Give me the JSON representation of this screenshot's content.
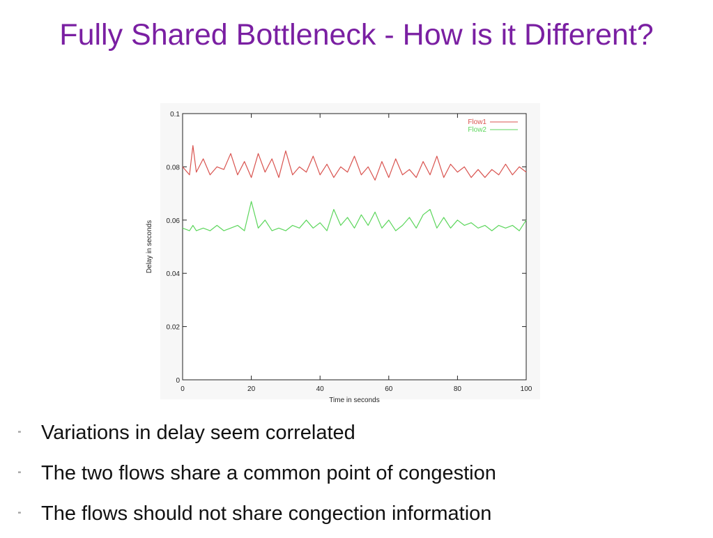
{
  "slide": {
    "title": "Fully Shared Bottleneck - How is it Different?"
  },
  "bullets": [
    {
      "mark": "\"",
      "text": "Variations in delay seem correlated"
    },
    {
      "mark": "\"",
      "text": "The two flows share a common point of congestion"
    },
    {
      "mark": "\"",
      "text": "The flows should not share congection information"
    }
  ],
  "chart_data": {
    "type": "line",
    "title": "",
    "xlabel": "Time in seconds",
    "ylabel": "Delay in seconds",
    "xlim": [
      0,
      100
    ],
    "ylim": [
      0,
      0.1
    ],
    "xticks": [
      0,
      20,
      40,
      60,
      80,
      100
    ],
    "yticks": [
      0,
      0.02,
      0.04,
      0.06,
      0.08,
      0.1
    ],
    "ytick_labels": [
      "0",
      "0.02",
      "0.04",
      "0.06",
      "0.08",
      "0.1"
    ],
    "grid": false,
    "legend_position": "top-right",
    "x": [
      0,
      2,
      3,
      4,
      6,
      8,
      10,
      12,
      14,
      16,
      18,
      20,
      22,
      24,
      26,
      28,
      30,
      32,
      34,
      36,
      38,
      40,
      42,
      44,
      46,
      48,
      50,
      52,
      54,
      56,
      58,
      60,
      62,
      64,
      66,
      68,
      70,
      72,
      74,
      76,
      78,
      80,
      82,
      84,
      86,
      88,
      90,
      92,
      94,
      96,
      98,
      100
    ],
    "series": [
      {
        "name": "Flow1",
        "color": "#d9534f",
        "values": [
          0.08,
          0.077,
          0.088,
          0.078,
          0.083,
          0.077,
          0.08,
          0.079,
          0.085,
          0.077,
          0.082,
          0.076,
          0.085,
          0.078,
          0.083,
          0.076,
          0.086,
          0.077,
          0.08,
          0.078,
          0.084,
          0.077,
          0.081,
          0.076,
          0.08,
          0.078,
          0.084,
          0.077,
          0.08,
          0.075,
          0.082,
          0.076,
          0.083,
          0.077,
          0.079,
          0.076,
          0.082,
          0.077,
          0.084,
          0.076,
          0.081,
          0.078,
          0.08,
          0.076,
          0.079,
          0.076,
          0.079,
          0.077,
          0.081,
          0.077,
          0.08,
          0.078
        ]
      },
      {
        "name": "Flow2",
        "color": "#5cd65c",
        "values": [
          0.057,
          0.056,
          0.058,
          0.056,
          0.057,
          0.056,
          0.058,
          0.056,
          0.057,
          0.058,
          0.056,
          0.067,
          0.057,
          0.06,
          0.056,
          0.057,
          0.056,
          0.058,
          0.057,
          0.06,
          0.057,
          0.059,
          0.056,
          0.064,
          0.058,
          0.061,
          0.057,
          0.062,
          0.058,
          0.063,
          0.057,
          0.06,
          0.056,
          0.058,
          0.061,
          0.057,
          0.062,
          0.064,
          0.057,
          0.061,
          0.057,
          0.06,
          0.058,
          0.059,
          0.057,
          0.058,
          0.056,
          0.058,
          0.057,
          0.058,
          0.056,
          0.06
        ]
      }
    ]
  }
}
